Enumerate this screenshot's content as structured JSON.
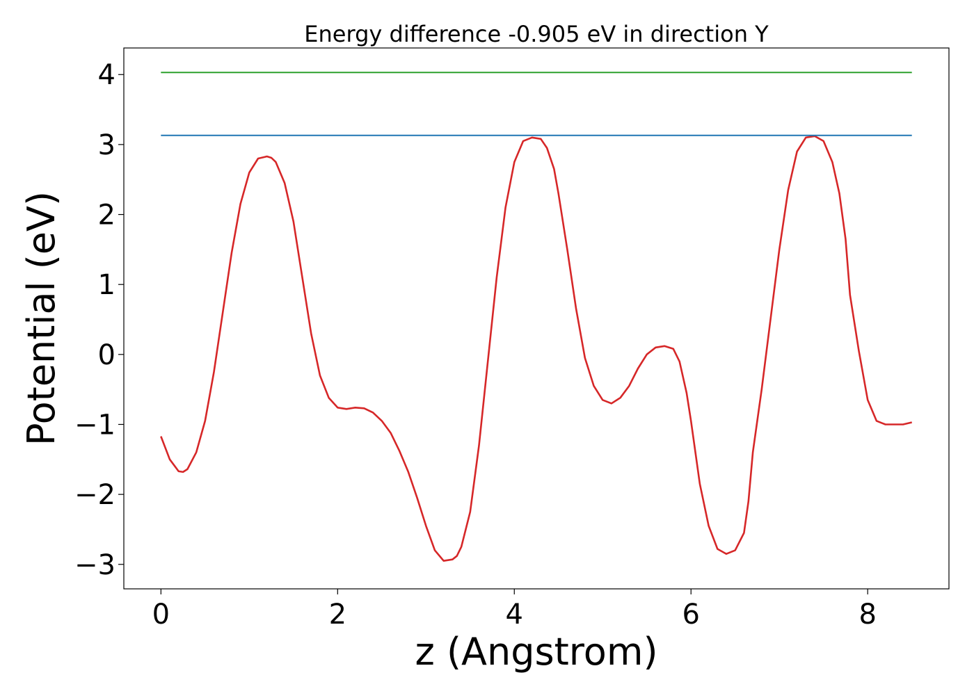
{
  "chart_data": {
    "type": "line",
    "title": "Energy difference -0.905 eV in direction Y",
    "xlabel": "z (Angstrom)",
    "ylabel": "Potential (eV)",
    "xlim": [
      -0.42,
      8.92
    ],
    "ylim": [
      -3.35,
      4.38
    ],
    "xticks": [
      0,
      2,
      4,
      6,
      8
    ],
    "xtick_labels": [
      "0",
      "2",
      "4",
      "6",
      "8"
    ],
    "yticks": [
      -3,
      -2,
      -1,
      0,
      1,
      2,
      3,
      4
    ],
    "ytick_labels": [
      "−3",
      "−2",
      "−1",
      "0",
      "1",
      "2",
      "3",
      "4"
    ],
    "grid": false,
    "series": [
      {
        "color": "#d62728",
        "x": [
          0.0,
          0.1,
          0.2,
          0.25,
          0.3,
          0.4,
          0.5,
          0.6,
          0.7,
          0.8,
          0.9,
          1.0,
          1.1,
          1.2,
          1.25,
          1.3,
          1.4,
          1.5,
          1.6,
          1.7,
          1.8,
          1.9,
          2.0,
          2.1,
          2.2,
          2.3,
          2.4,
          2.5,
          2.6,
          2.7,
          2.8,
          2.9,
          3.0,
          3.1,
          3.2,
          3.3,
          3.35,
          3.4,
          3.5,
          3.6,
          3.7,
          3.8,
          3.9,
          4.0,
          4.1,
          4.2,
          4.3,
          4.37,
          4.45,
          4.5,
          4.6,
          4.7,
          4.8,
          4.9,
          5.0,
          5.1,
          5.2,
          5.3,
          5.4,
          5.5,
          5.6,
          5.7,
          5.8,
          5.87,
          5.95,
          6.0,
          6.1,
          6.2,
          6.3,
          6.4,
          6.5,
          6.6,
          6.65,
          6.7,
          6.8,
          6.9,
          7.0,
          7.1,
          7.2,
          7.3,
          7.4,
          7.5,
          7.6,
          7.68,
          7.75,
          7.8,
          7.9,
          8.0,
          8.1,
          8.2,
          8.3,
          8.4,
          8.5
        ],
        "y": [
          -1.17,
          -1.5,
          -1.67,
          -1.68,
          -1.64,
          -1.4,
          -0.95,
          -0.25,
          0.6,
          1.45,
          2.15,
          2.6,
          2.8,
          2.83,
          2.81,
          2.75,
          2.45,
          1.9,
          1.1,
          0.3,
          -0.3,
          -0.62,
          -0.76,
          -0.78,
          -0.76,
          -0.77,
          -0.83,
          -0.95,
          -1.12,
          -1.38,
          -1.68,
          -2.05,
          -2.45,
          -2.8,
          -2.95,
          -2.93,
          -2.88,
          -2.75,
          -2.25,
          -1.3,
          -0.1,
          1.1,
          2.1,
          2.75,
          3.05,
          3.1,
          3.08,
          2.95,
          2.65,
          2.3,
          1.5,
          0.65,
          -0.05,
          -0.45,
          -0.65,
          -0.7,
          -0.62,
          -0.45,
          -0.2,
          0.0,
          0.1,
          0.12,
          0.08,
          -0.1,
          -0.55,
          -0.95,
          -1.85,
          -2.45,
          -2.78,
          -2.85,
          -2.8,
          -2.55,
          -2.1,
          -1.4,
          -0.5,
          0.5,
          1.5,
          2.35,
          2.9,
          3.1,
          3.12,
          3.05,
          2.75,
          2.3,
          1.65,
          0.85,
          0.05,
          -0.65,
          -0.95,
          -1.0,
          -1.0,
          -1.0,
          -0.97
        ]
      },
      {
        "color": "#1f77b4",
        "x": [
          0.0,
          8.5
        ],
        "y": [
          3.13,
          3.13
        ]
      },
      {
        "color": "#2ca02c",
        "x": [
          0.0,
          8.5
        ],
        "y": [
          4.03,
          4.03
        ]
      }
    ]
  }
}
